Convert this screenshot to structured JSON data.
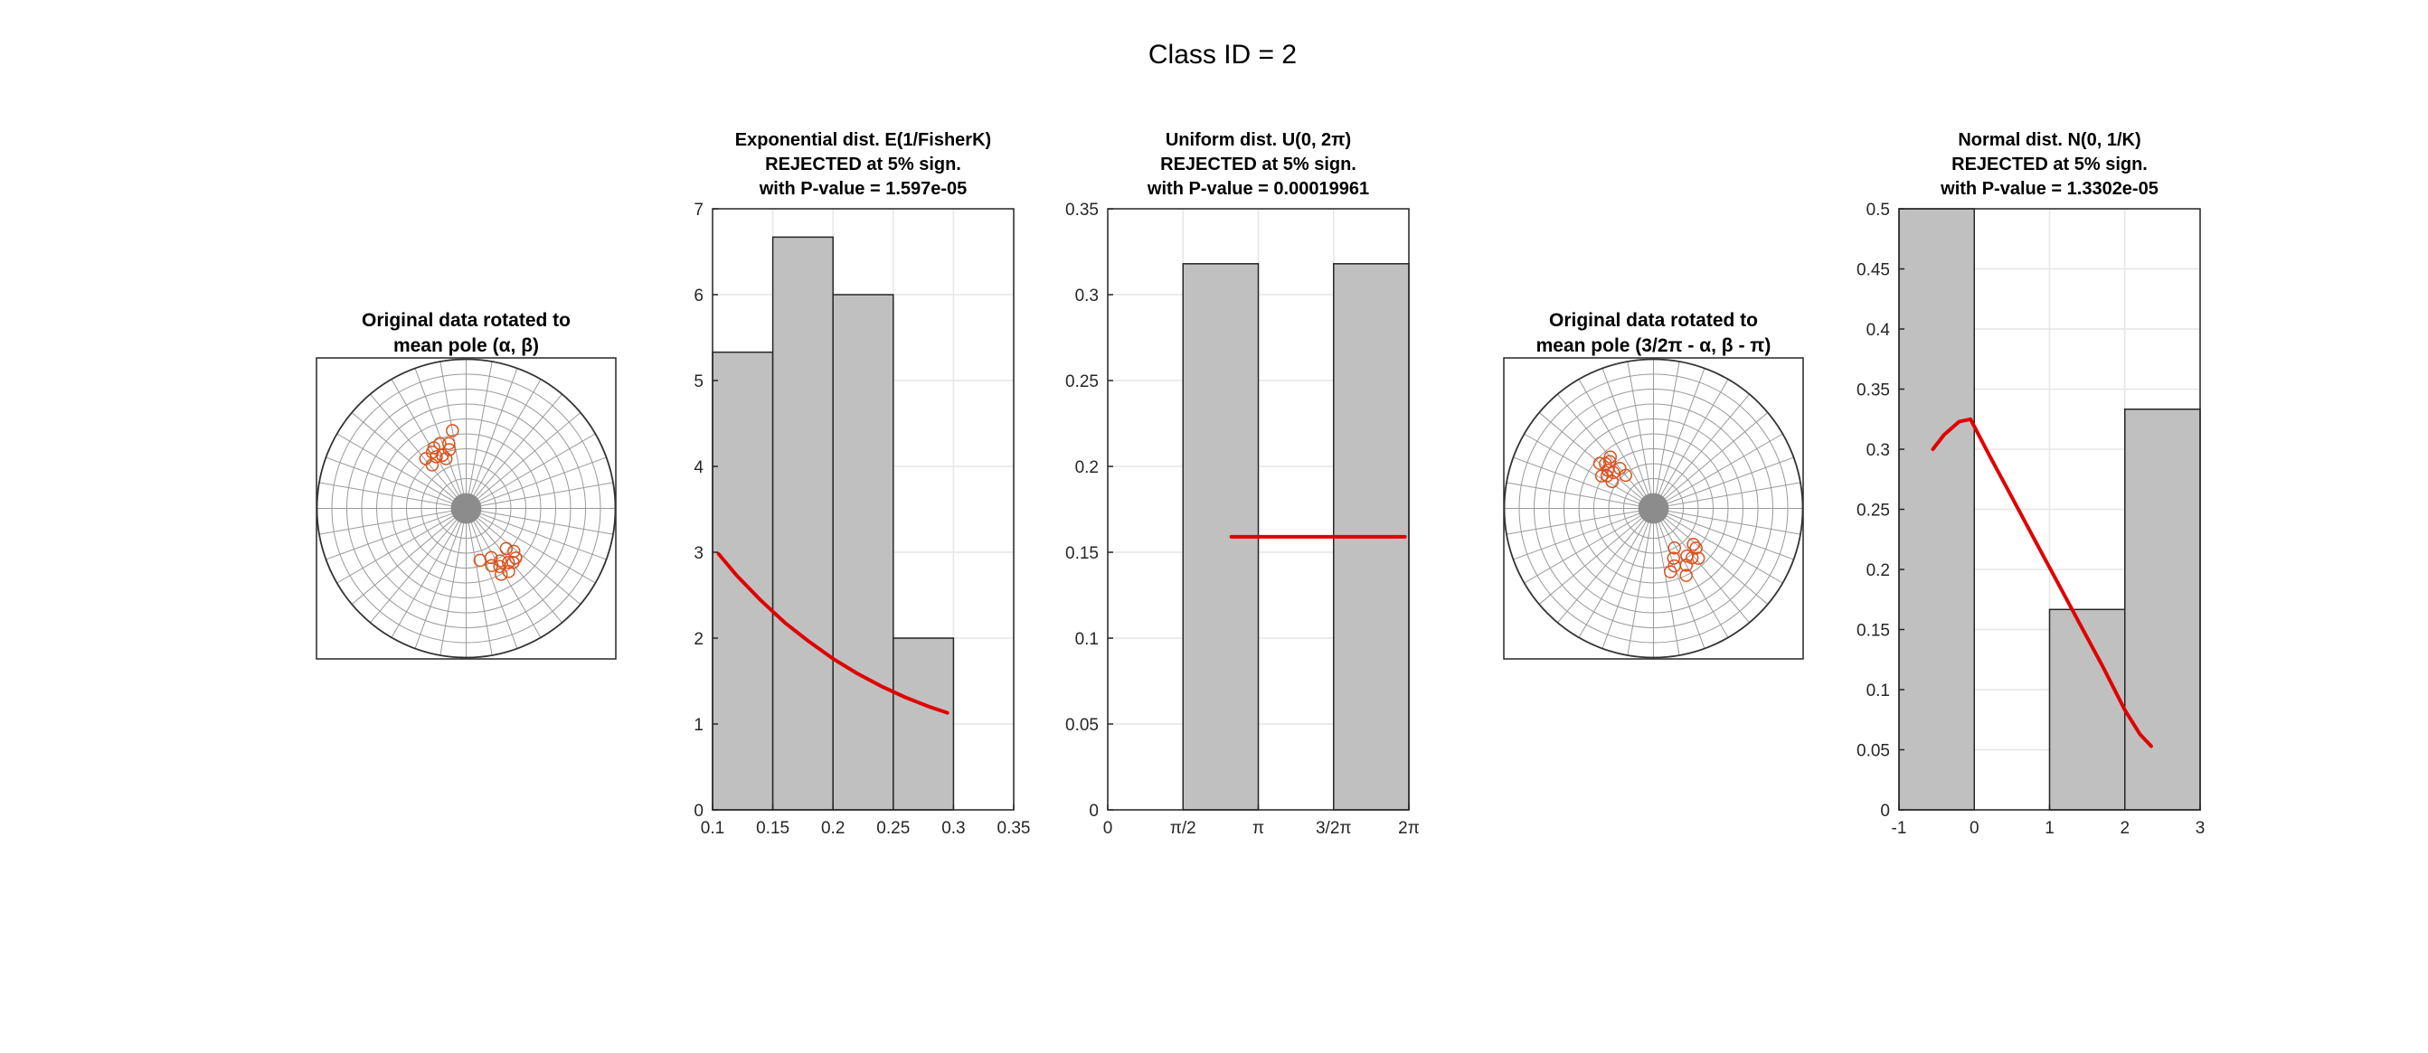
{
  "figure": {
    "suptitle": "Class ID = 2"
  },
  "colors": {
    "bar_fill": "#c0c0c0",
    "bar_edge": "#262626",
    "fit_line": "#e00000",
    "marker": "#d9531e",
    "net_line": "#9a9a9a",
    "grid": "#e6e6e6"
  },
  "stereonets": [
    {
      "title": [
        "Original data rotated to",
        "mean pole (α, β)"
      ],
      "points": [
        {
          "r": 0.53,
          "deg": 100
        },
        {
          "r": 0.47,
          "deg": 112
        },
        {
          "r": 0.44,
          "deg": 121
        },
        {
          "r": 0.43,
          "deg": 129
        },
        {
          "r": 0.37,
          "deg": 128
        },
        {
          "r": 0.39,
          "deg": 114
        },
        {
          "r": 0.41,
          "deg": 106
        },
        {
          "r": 0.46,
          "deg": 118
        },
        {
          "r": 0.45,
          "deg": 105
        },
        {
          "r": 0.36,
          "deg": 112
        },
        {
          "r": 0.4,
          "deg": 120
        },
        {
          "r": 0.37,
          "deg": 297
        },
        {
          "r": 0.36,
          "deg": 285
        },
        {
          "r": 0.42,
          "deg": 303
        },
        {
          "r": 0.46,
          "deg": 308
        },
        {
          "r": 0.45,
          "deg": 300
        },
        {
          "r": 0.51,
          "deg": 304
        },
        {
          "r": 0.48,
          "deg": 311
        },
        {
          "r": 0.42,
          "deg": 294
        },
        {
          "r": 0.38,
          "deg": 315
        },
        {
          "r": 0.5,
          "deg": 298
        },
        {
          "r": 0.43,
          "deg": 318
        },
        {
          "r": 0.47,
          "deg": 315
        }
      ]
    },
    {
      "title": [
        "Original data rotated to",
        "mean pole (3/2π - α, β - π)"
      ],
      "points": [
        {
          "r": 0.45,
          "deg": 130
        },
        {
          "r": 0.44,
          "deg": 137
        },
        {
          "r": 0.4,
          "deg": 140
        },
        {
          "r": 0.38,
          "deg": 145
        },
        {
          "r": 0.33,
          "deg": 147
        },
        {
          "r": 0.29,
          "deg": 130
        },
        {
          "r": 0.43,
          "deg": 133
        },
        {
          "r": 0.41,
          "deg": 148
        },
        {
          "r": 0.36,
          "deg": 138
        },
        {
          "r": 0.47,
          "deg": 140
        },
        {
          "r": 0.35,
          "deg": 130
        },
        {
          "r": 0.3,
          "deg": 298
        },
        {
          "r": 0.36,
          "deg": 292
        },
        {
          "r": 0.39,
          "deg": 305
        },
        {
          "r": 0.44,
          "deg": 300
        },
        {
          "r": 0.41,
          "deg": 290
        },
        {
          "r": 0.45,
          "deg": 312
        },
        {
          "r": 0.5,
          "deg": 296
        },
        {
          "r": 0.39,
          "deg": 317
        },
        {
          "r": 0.42,
          "deg": 308
        },
        {
          "r": 0.36,
          "deg": 318
        },
        {
          "r": 0.44,
          "deg": 285
        }
      ]
    }
  ],
  "chart_data": [
    {
      "type": "bar",
      "title": [
        "Exponential dist. E(1/FisherK)",
        "REJECTED at 5% sign.",
        "with P-value = 1.597e-05"
      ],
      "xlim": [
        0.1,
        0.35
      ],
      "ylim": [
        0,
        7
      ],
      "xticks": [
        0.1,
        0.15,
        0.2,
        0.25,
        0.3,
        0.35
      ],
      "xticklabels": [
        "0.1",
        "0.15",
        "0.2",
        "0.25",
        "0.3",
        "0.35"
      ],
      "yticks": [
        0,
        1,
        2,
        3,
        4,
        5,
        6,
        7
      ],
      "yticklabels": [
        "0",
        "1",
        "2",
        "3",
        "4",
        "5",
        "6",
        "7"
      ],
      "bin_edges": [
        0.1,
        0.15,
        0.2,
        0.25,
        0.3
      ],
      "values": [
        5.33,
        6.67,
        6.0,
        2.0
      ],
      "fit_line": {
        "x": [
          0.105,
          0.12,
          0.14,
          0.16,
          0.18,
          0.2,
          0.22,
          0.24,
          0.26,
          0.28,
          0.295
        ],
        "y": [
          2.98,
          2.73,
          2.44,
          2.18,
          1.96,
          1.76,
          1.59,
          1.44,
          1.31,
          1.2,
          1.13
        ]
      }
    },
    {
      "type": "bar",
      "title": [
        "Uniform dist. U(0, 2π)",
        "REJECTED at 5% sign.",
        "with P-value = 0.00019961"
      ],
      "xlim": [
        0,
        6.2832
      ],
      "ylim": [
        0,
        0.35
      ],
      "xticks": [
        0,
        1.5708,
        3.1416,
        4.7124,
        6.2832
      ],
      "xticklabels": [
        "0",
        "π/2",
        "π",
        "3/2π",
        "2π"
      ],
      "yticks": [
        0,
        0.05,
        0.1,
        0.15,
        0.2,
        0.25,
        0.3,
        0.35
      ],
      "yticklabels": [
        "0",
        "0.05",
        "0.1",
        "0.15",
        "0.2",
        "0.25",
        "0.3",
        "0.35"
      ],
      "bin_edges": [
        0,
        1.5708,
        3.1416,
        4.7124,
        6.2832
      ],
      "values": [
        0,
        0.318,
        0,
        0.318
      ],
      "fit_line": {
        "x": [
          2.58,
          6.2
        ],
        "y": [
          0.159,
          0.159
        ]
      }
    },
    {
      "type": "bar",
      "title": [
        "Normal dist. N(0, 1/K)",
        "REJECTED at 5% sign.",
        "with P-value = 1.3302e-05"
      ],
      "xlim": [
        -1,
        3
      ],
      "ylim": [
        0,
        0.5
      ],
      "xticks": [
        -1,
        0,
        1,
        2,
        3
      ],
      "xticklabels": [
        "-1",
        "0",
        "1",
        "2",
        "3"
      ],
      "yticks": [
        0,
        0.05,
        0.1,
        0.15,
        0.2,
        0.25,
        0.3,
        0.35,
        0.4,
        0.45,
        0.5
      ],
      "yticklabels": [
        "0",
        "0.05",
        "0.1",
        "0.15",
        "0.2",
        "0.25",
        "0.3",
        "0.35",
        "0.4",
        "0.45",
        "0.5"
      ],
      "bin_edges": [
        -1,
        0,
        1,
        2,
        3
      ],
      "values": [
        0.5,
        0,
        0.1667,
        0.3333
      ],
      "fit_line": {
        "x": [
          -0.55,
          -0.4,
          -0.2,
          -0.05,
          0.2,
          0.5,
          0.8,
          1.1,
          1.4,
          1.7,
          2.0,
          2.2,
          2.35
        ],
        "y": [
          0.3,
          0.312,
          0.323,
          0.325,
          0.295,
          0.26,
          0.225,
          0.19,
          0.155,
          0.12,
          0.083,
          0.063,
          0.053
        ]
      }
    }
  ]
}
